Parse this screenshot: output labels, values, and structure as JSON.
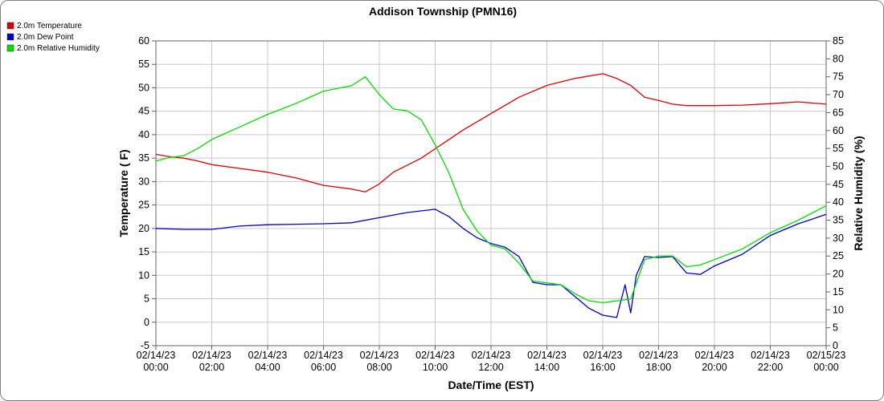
{
  "chart_data": {
    "type": "line",
    "title": "Addison Township (PMN16)",
    "xlabel": "Date/Time (EST)",
    "ylabel_left": "Temperature ( F)",
    "ylabel_right": "Relative Humidity (%)",
    "grid": true,
    "legend_position": "top-left",
    "y_left": {
      "min": -5,
      "max": 60,
      "ticks": [
        "-5",
        "0",
        "5",
        "10",
        "15",
        "20",
        "25",
        "30",
        "35",
        "40",
        "45",
        "50",
        "55",
        "60"
      ]
    },
    "y_right": {
      "min": 0,
      "max": 85,
      "ticks": [
        "0",
        "5",
        "10",
        "15",
        "20",
        "25",
        "30",
        "35",
        "40",
        "45",
        "50",
        "55",
        "60",
        "65",
        "70",
        "75",
        "80",
        "85"
      ]
    },
    "x_hours_range": [
      0,
      24
    ],
    "x_ticks": [
      {
        "hour": 0,
        "date": "02/14/23",
        "time": "00:00"
      },
      {
        "hour": 2,
        "date": "02/14/23",
        "time": "02:00"
      },
      {
        "hour": 4,
        "date": "02/14/23",
        "time": "04:00"
      },
      {
        "hour": 6,
        "date": "02/14/23",
        "time": "06:00"
      },
      {
        "hour": 8,
        "date": "02/14/23",
        "time": "08:00"
      },
      {
        "hour": 10,
        "date": "02/14/23",
        "time": "10:00"
      },
      {
        "hour": 12,
        "date": "02/14/23",
        "time": "12:00"
      },
      {
        "hour": 14,
        "date": "02/14/23",
        "time": "14:00"
      },
      {
        "hour": 16,
        "date": "02/14/23",
        "time": "16:00"
      },
      {
        "hour": 18,
        "date": "02/14/23",
        "time": "18:00"
      },
      {
        "hour": 20,
        "date": "02/14/23",
        "time": "20:00"
      },
      {
        "hour": 22,
        "date": "02/14/23",
        "time": "22:00"
      },
      {
        "hour": 24,
        "date": "02/15/23",
        "time": "00:00"
      }
    ],
    "series": [
      {
        "name": "2.0m Temperature",
        "color": "#e00000",
        "axis": "left",
        "points": [
          [
            0,
            35.8
          ],
          [
            0.5,
            35.3
          ],
          [
            1,
            35.0
          ],
          [
            1.5,
            34.4
          ],
          [
            2,
            33.6
          ],
          [
            3,
            32.8
          ],
          [
            4,
            32.0
          ],
          [
            5,
            30.8
          ],
          [
            6,
            29.2
          ],
          [
            7,
            28.4
          ],
          [
            7.5,
            27.8
          ],
          [
            8,
            29.5
          ],
          [
            8.5,
            32.0
          ],
          [
            9,
            33.5
          ],
          [
            9.5,
            35.0
          ],
          [
            10,
            37.0
          ],
          [
            10.5,
            39.0
          ],
          [
            11,
            41.0
          ],
          [
            12,
            44.5
          ],
          [
            13,
            48.0
          ],
          [
            14,
            50.5
          ],
          [
            15,
            52.0
          ],
          [
            16,
            53.0
          ],
          [
            16.5,
            52.0
          ],
          [
            17,
            50.5
          ],
          [
            17.5,
            48.0
          ],
          [
            18,
            47.3
          ],
          [
            18.5,
            46.5
          ],
          [
            19,
            46.2
          ],
          [
            20,
            46.2
          ],
          [
            21,
            46.3
          ],
          [
            22,
            46.6
          ],
          [
            23,
            47.0
          ],
          [
            24,
            46.5
          ]
        ]
      },
      {
        "name": "2.0m Dew Point",
        "color": "#0000d0",
        "axis": "left",
        "points": [
          [
            0,
            20.0
          ],
          [
            1,
            19.8
          ],
          [
            2,
            19.8
          ],
          [
            3,
            20.5
          ],
          [
            4,
            20.8
          ],
          [
            5,
            20.9
          ],
          [
            6,
            21.0
          ],
          [
            7,
            21.2
          ],
          [
            8,
            22.3
          ],
          [
            9,
            23.4
          ],
          [
            10,
            24.1
          ],
          [
            10.5,
            22.5
          ],
          [
            11,
            20.0
          ],
          [
            11.5,
            18.0
          ],
          [
            12,
            16.8
          ],
          [
            12.5,
            16.0
          ],
          [
            13,
            14.0
          ],
          [
            13.5,
            8.5
          ],
          [
            14,
            8.0
          ],
          [
            14.5,
            8.0
          ],
          [
            15,
            5.5
          ],
          [
            15.5,
            3.0
          ],
          [
            16,
            1.5
          ],
          [
            16.5,
            1.0
          ],
          [
            16.8,
            8.0
          ],
          [
            17,
            2.0
          ],
          [
            17.2,
            10.0
          ],
          [
            17.5,
            14.0
          ],
          [
            18,
            13.8
          ],
          [
            18.5,
            14.0
          ],
          [
            19,
            10.5
          ],
          [
            19.5,
            10.2
          ],
          [
            20,
            12.0
          ],
          [
            21,
            14.5
          ],
          [
            22,
            18.5
          ],
          [
            23,
            21.0
          ],
          [
            24,
            23.0
          ]
        ]
      },
      {
        "name": "2.0m Relative Humidity",
        "color": "#00e000",
        "axis": "right",
        "points": [
          [
            0,
            51.5
          ],
          [
            0.5,
            52.5
          ],
          [
            1,
            53.0
          ],
          [
            1.5,
            55.0
          ],
          [
            2,
            57.5
          ],
          [
            3,
            61.0
          ],
          [
            4,
            64.5
          ],
          [
            5,
            67.5
          ],
          [
            6,
            71.0
          ],
          [
            7,
            72.5
          ],
          [
            7.5,
            75.0
          ],
          [
            8,
            70.0
          ],
          [
            8.5,
            66.0
          ],
          [
            9,
            65.5
          ],
          [
            9.5,
            63.0
          ],
          [
            10,
            56.0
          ],
          [
            10.5,
            48.0
          ],
          [
            11,
            38.0
          ],
          [
            11.5,
            32.0
          ],
          [
            12,
            28.0
          ],
          [
            12.5,
            27.0
          ],
          [
            13,
            23.0
          ],
          [
            13.5,
            18.0
          ],
          [
            14,
            17.5
          ],
          [
            14.5,
            17.0
          ],
          [
            15,
            14.5
          ],
          [
            15.5,
            12.5
          ],
          [
            16,
            12.0
          ],
          [
            16.5,
            12.5
          ],
          [
            17,
            13.0
          ],
          [
            17.5,
            24.0
          ],
          [
            18,
            25.0
          ],
          [
            18.5,
            25.0
          ],
          [
            19,
            22.0
          ],
          [
            19.5,
            22.5
          ],
          [
            20,
            24.0
          ],
          [
            21,
            27.0
          ],
          [
            22,
            31.5
          ],
          [
            23,
            35.0
          ],
          [
            24,
            39.0
          ]
        ]
      }
    ]
  }
}
